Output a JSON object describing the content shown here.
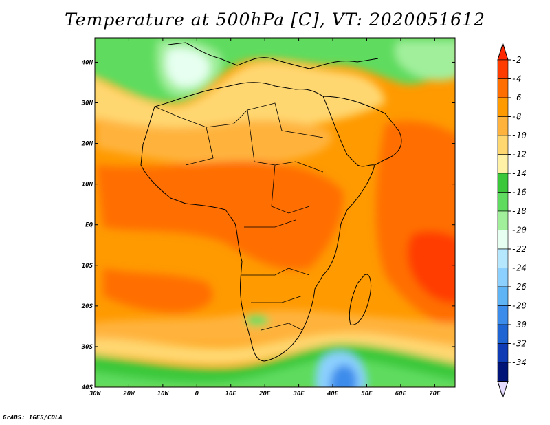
{
  "title": "Temperature at 500hPa [C], VT: 2020051612",
  "credit": "GrADS: IGES/COLA",
  "map": {
    "lon_range": [
      -30,
      76
    ],
    "lat_range": [
      -40,
      46
    ],
    "lon_ticks": [
      {
        "value": -30,
        "label": "30W"
      },
      {
        "value": -20,
        "label": "20W"
      },
      {
        "value": -10,
        "label": "10W"
      },
      {
        "value": 0,
        "label": "0"
      },
      {
        "value": 10,
        "label": "10E"
      },
      {
        "value": 20,
        "label": "20E"
      },
      {
        "value": 30,
        "label": "30E"
      },
      {
        "value": 40,
        "label": "40E"
      },
      {
        "value": 50,
        "label": "50E"
      },
      {
        "value": 60,
        "label": "60E"
      },
      {
        "value": 70,
        "label": "70E"
      }
    ],
    "lat_ticks": [
      {
        "value": 40,
        "label": "40N"
      },
      {
        "value": 30,
        "label": "30N"
      },
      {
        "value": 20,
        "label": "20N"
      },
      {
        "value": 10,
        "label": "10N"
      },
      {
        "value": 0,
        "label": "EQ"
      },
      {
        "value": -10,
        "label": "10S"
      },
      {
        "value": -20,
        "label": "20S"
      },
      {
        "value": -30,
        "label": "30S"
      },
      {
        "value": -40,
        "label": "40S"
      }
    ]
  },
  "colorbar": {
    "labels": [
      "-2",
      "-4",
      "-6",
      "-8",
      "-10",
      "-12",
      "-14",
      "-16",
      "-18",
      "-20",
      "-22",
      "-24",
      "-26",
      "-28",
      "-30",
      "-32",
      "-34"
    ],
    "colors": [
      "#ff3c00",
      "#ff6e00",
      "#ff9a00",
      "#ffb33c",
      "#ffd771",
      "#fff2a6",
      "#3ac83a",
      "#5fdc5f",
      "#a1ef9b",
      "#e6fff0",
      "#b5e7ff",
      "#8cd0ff",
      "#5fb4f5",
      "#3c8ceb",
      "#1e64d2",
      "#0f3cb4",
      "#001478"
    ],
    "top_color": "#ff2800",
    "bottom_color": "#e6dcff"
  }
}
